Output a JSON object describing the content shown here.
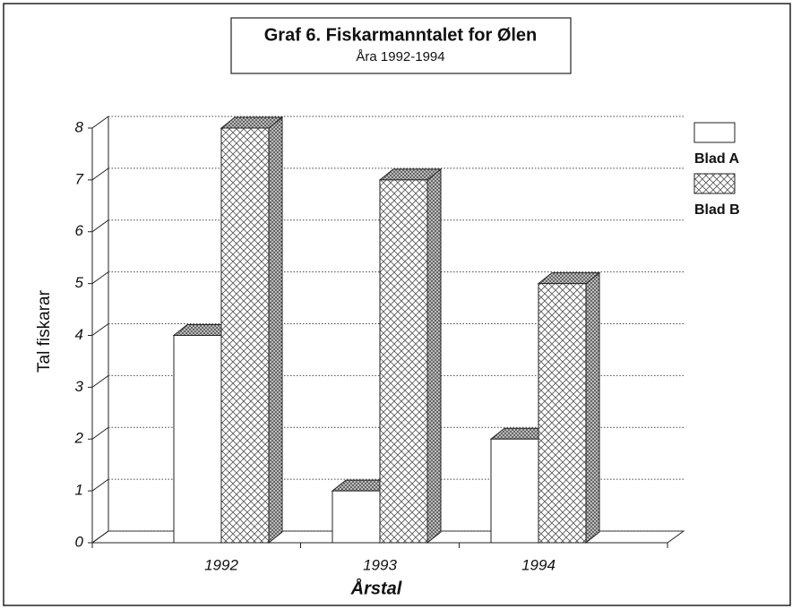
{
  "chart_data": {
    "type": "bar3d",
    "title": "Graf 6. Fiskarmanntalet for Ølen",
    "subtitle": "Åra 1992-1994",
    "x_label": "Årstal",
    "y_label": "Tal fiskarar",
    "categories": [
      "1992",
      "1993",
      "1994"
    ],
    "series": [
      {
        "name": "Blad A",
        "color": "#ffffff",
        "hatch": false,
        "values": [
          4,
          1,
          2
        ]
      },
      {
        "name": "Blad B",
        "color": "#ffffff",
        "hatch": true,
        "values": [
          8,
          7,
          5
        ]
      }
    ],
    "ylim": [
      0,
      8
    ],
    "yticks": [
      0,
      1,
      2,
      3,
      4,
      5,
      6,
      7,
      8
    ],
    "grid": true,
    "legend": "right"
  }
}
